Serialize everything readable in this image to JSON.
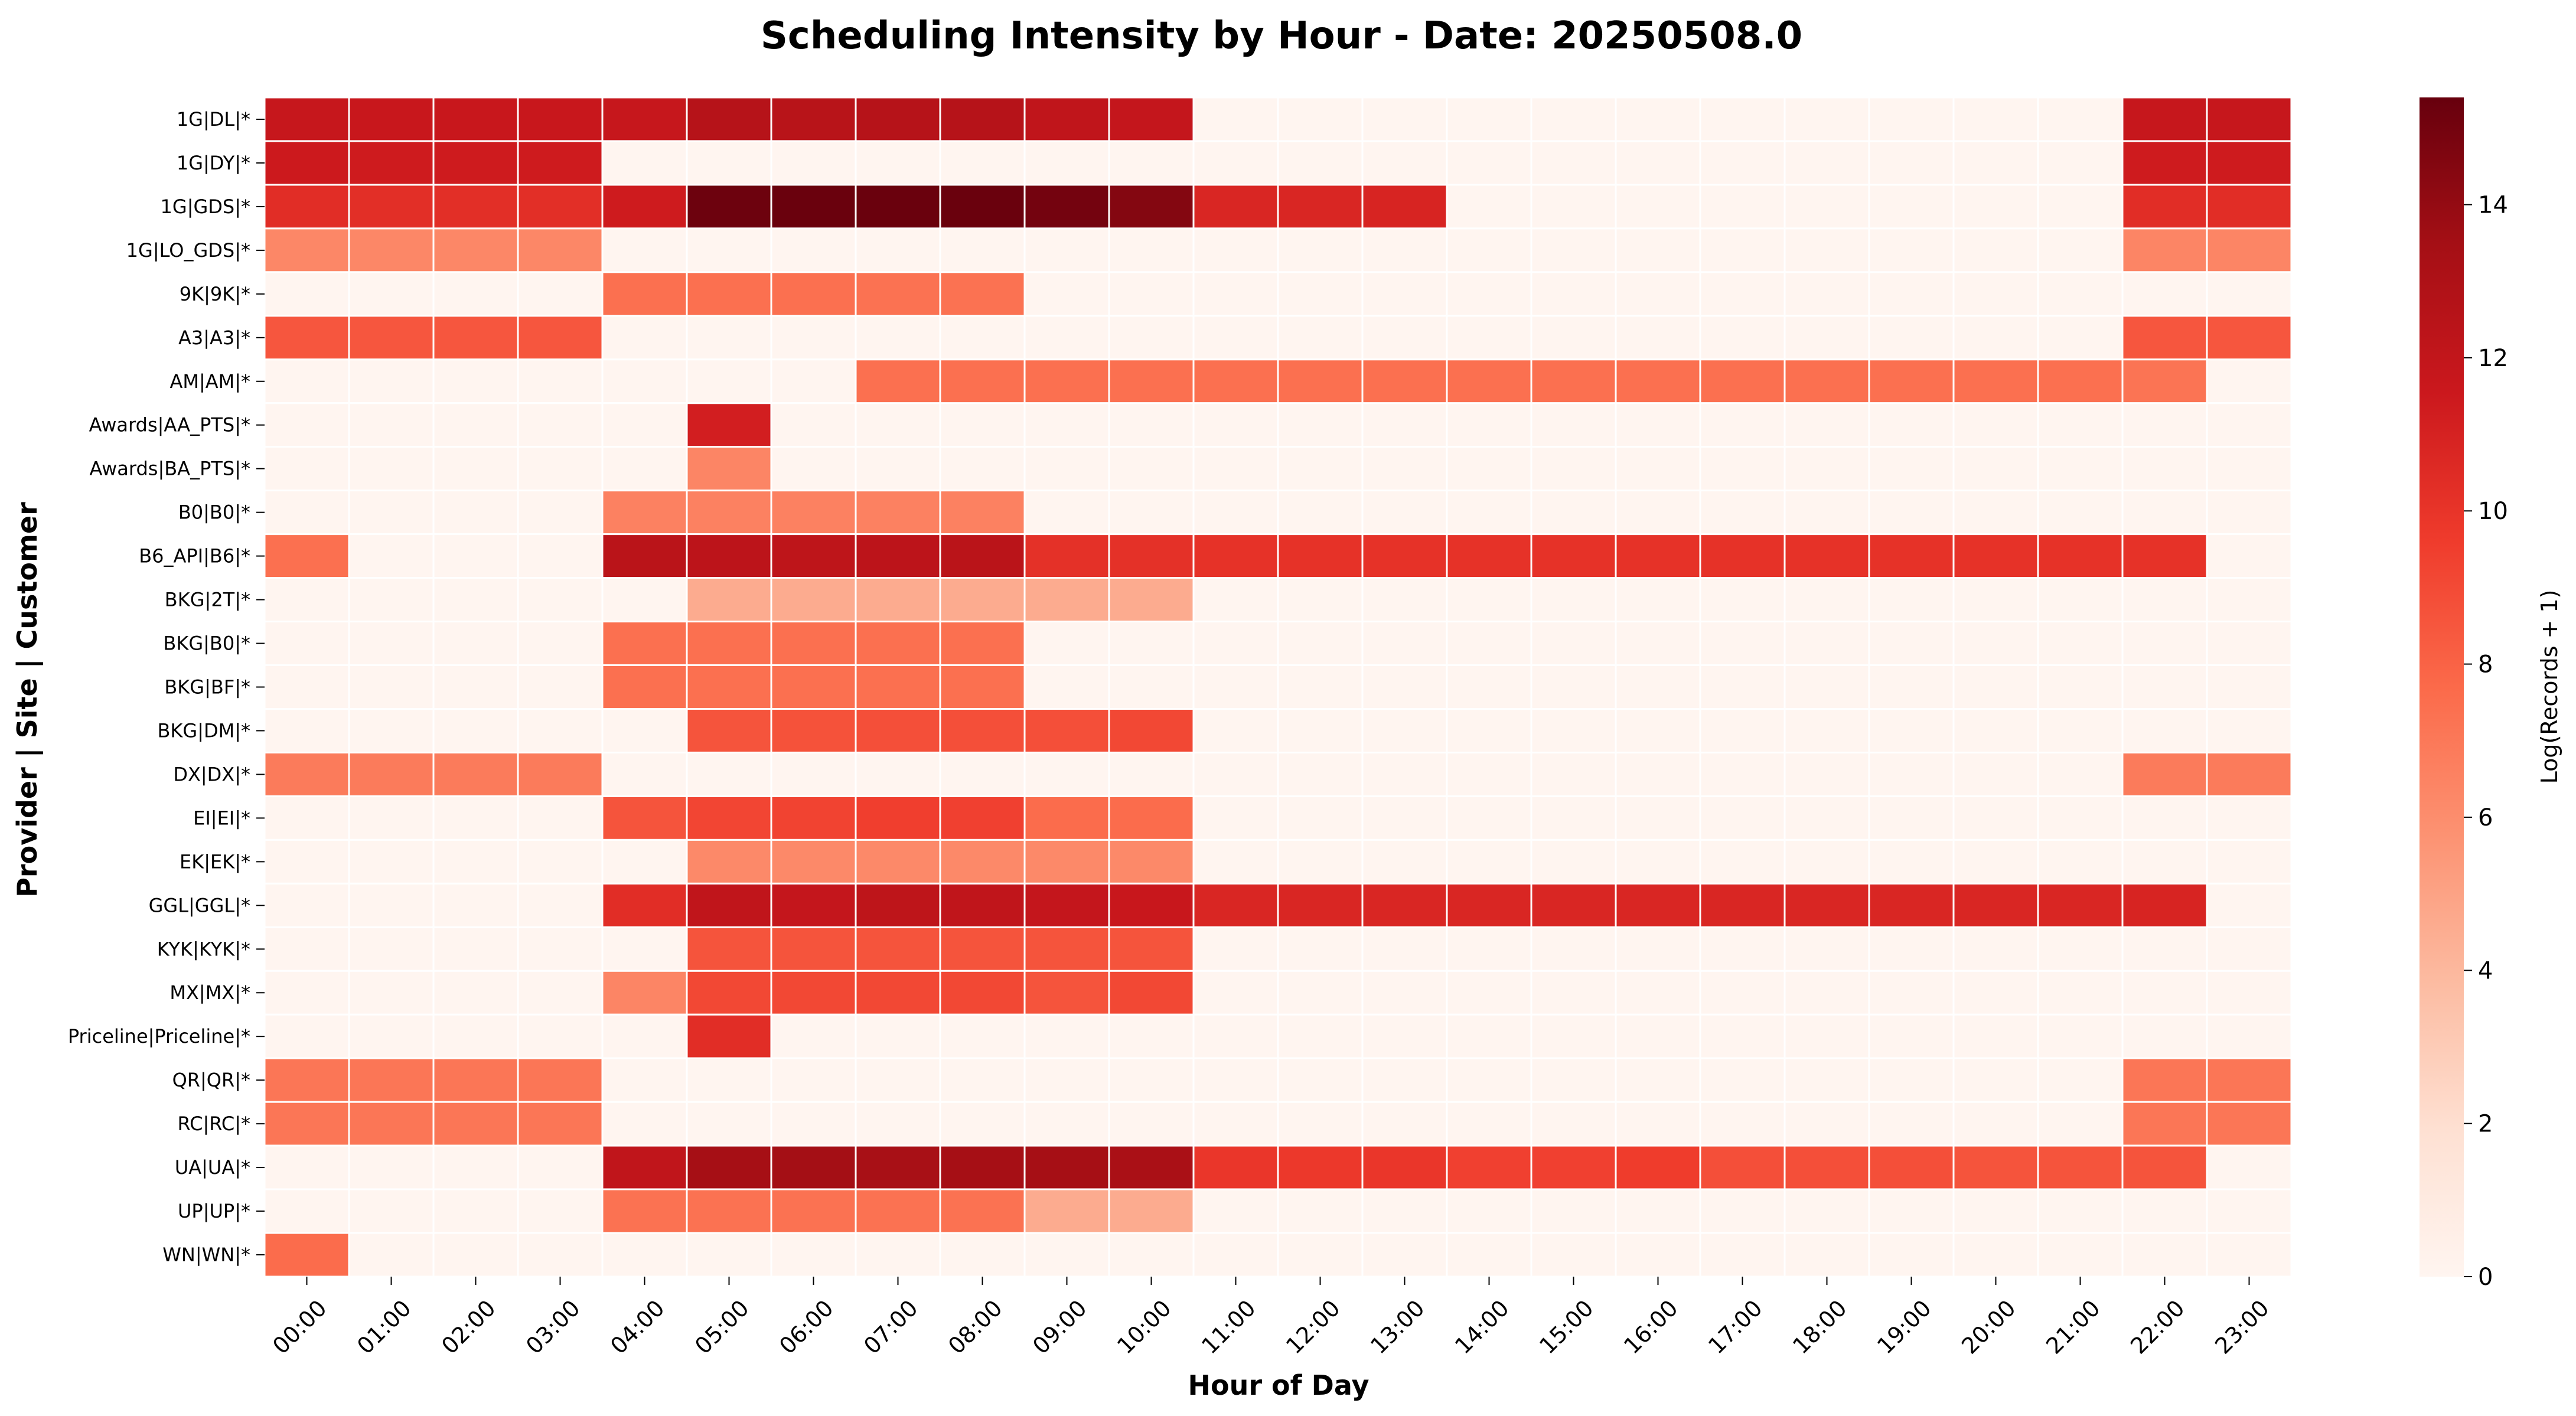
{
  "chart_data": {
    "type": "heatmap",
    "title": "Scheduling Intensity by Hour - Date: 20250508.0",
    "xlabel": "Hour of Day",
    "ylabel": "Provider | Site | Customer",
    "colorbar_label": "Log(Records + 1)",
    "colorbar_range": [
      0,
      15.4
    ],
    "colorbar_ticks": [
      0,
      2,
      4,
      6,
      8,
      10,
      12,
      14
    ],
    "colormap": "Reds",
    "x": [
      "00:00",
      "01:00",
      "02:00",
      "03:00",
      "04:00",
      "05:00",
      "06:00",
      "07:00",
      "08:00",
      "09:00",
      "10:00",
      "11:00",
      "12:00",
      "13:00",
      "14:00",
      "15:00",
      "16:00",
      "17:00",
      "18:00",
      "19:00",
      "20:00",
      "21:00",
      "22:00",
      "23:00"
    ],
    "y": [
      "1G|DL|*",
      "1G|DY|*",
      "1G|GDS|*",
      "1G|LO_GDS|*",
      "9K|9K|*",
      "A3|A3|*",
      "AM|AM|*",
      "Awards|AA_PTS|*",
      "Awards|BA_PTS|*",
      "B0|B0|*",
      "B6_API|B6|*",
      "BKG|2T|*",
      "BKG|B0|*",
      "BKG|BF|*",
      "BKG|DM|*",
      "DX|DX|*",
      "EI|EI|*",
      "EK|EK|*",
      "GGL|GGL|*",
      "KYK|KYK|*",
      "MX|MX|*",
      "Priceline|Priceline|*",
      "QR|QR|*",
      "RC|RC|*",
      "UA|UA|*",
      "UP|UP|*",
      "WN|WN|*"
    ],
    "values": [
      [
        11.8,
        11.7,
        11.7,
        11.7,
        11.8,
        12.6,
        12.5,
        12.6,
        12.6,
        12.1,
        11.9,
        0,
        0,
        0,
        0,
        0,
        0,
        0,
        0,
        0,
        0,
        0,
        11.8,
        11.8
      ],
      [
        11.5,
        11.4,
        11.4,
        11.4,
        0,
        0,
        0,
        0,
        0,
        0,
        0,
        0,
        0,
        0,
        0,
        0,
        0,
        0,
        0,
        0,
        0,
        0,
        11.4,
        11.4
      ],
      [
        10.4,
        10.3,
        10.3,
        10.3,
        11.4,
        15.2,
        15.3,
        15.3,
        15.3,
        15.0,
        14.5,
        10.8,
        10.8,
        10.9,
        0,
        0,
        0,
        0,
        0,
        0,
        0,
        0,
        10.4,
        10.4
      ],
      [
        6.3,
        6.3,
        6.3,
        6.3,
        0,
        0,
        0,
        0,
        0,
        0,
        0,
        0,
        0,
        0,
        0,
        0,
        0,
        0,
        0,
        0,
        0,
        0,
        6.4,
        6.4
      ],
      [
        0,
        0,
        0,
        0,
        7.4,
        7.4,
        7.4,
        7.3,
        7.3,
        0,
        0,
        0,
        0,
        0,
        0,
        0,
        0,
        0,
        0,
        0,
        0,
        0,
        0,
        0
      ],
      [
        8.5,
        8.5,
        8.5,
        8.5,
        0,
        0,
        0,
        0,
        0,
        0,
        0,
        0,
        0,
        0,
        0,
        0,
        0,
        0,
        0,
        0,
        0,
        0,
        8.5,
        8.5
      ],
      [
        0,
        0,
        0,
        0,
        0,
        0,
        0,
        7.4,
        7.4,
        7.4,
        7.4,
        7.4,
        7.4,
        7.4,
        7.4,
        7.4,
        7.4,
        7.4,
        7.4,
        7.4,
        7.4,
        7.4,
        7.2,
        0
      ],
      [
        0,
        0,
        0,
        0,
        0,
        11.2,
        0,
        0,
        0,
        0,
        0,
        0,
        0,
        0,
        0,
        0,
        0,
        0,
        0,
        0,
        0,
        0,
        0,
        0
      ],
      [
        0,
        0,
        0,
        0,
        0,
        6.4,
        0,
        0,
        0,
        0,
        0,
        0,
        0,
        0,
        0,
        0,
        0,
        0,
        0,
        0,
        0,
        0,
        0,
        0
      ],
      [
        0,
        0,
        0,
        0,
        6.6,
        6.6,
        6.6,
        6.6,
        6.6,
        0,
        0,
        0,
        0,
        0,
        0,
        0,
        0,
        0,
        0,
        0,
        0,
        0,
        0,
        0
      ],
      [
        7.4,
        0,
        0,
        0,
        12.4,
        12.3,
        12.2,
        12.3,
        12.4,
        10.2,
        10.2,
        10.1,
        10.1,
        10.1,
        10.1,
        10.1,
        10.1,
        10.1,
        10.1,
        10.1,
        10.1,
        10.1,
        10.1,
        0
      ],
      [
        0,
        0,
        0,
        0,
        0,
        4.6,
        4.6,
        4.6,
        4.6,
        4.6,
        4.6,
        0,
        0,
        0,
        0,
        0,
        0,
        0,
        0,
        0,
        0,
        0,
        0,
        0
      ],
      [
        0,
        0,
        0,
        0,
        7.4,
        7.4,
        7.4,
        7.4,
        7.4,
        0,
        0,
        0,
        0,
        0,
        0,
        0,
        0,
        0,
        0,
        0,
        0,
        0,
        0,
        0
      ],
      [
        0,
        0,
        0,
        0,
        7.4,
        7.4,
        7.4,
        7.4,
        7.4,
        0,
        0,
        0,
        0,
        0,
        0,
        0,
        0,
        0,
        0,
        0,
        0,
        0,
        0,
        0
      ],
      [
        0,
        0,
        0,
        0,
        0,
        8.6,
        8.7,
        8.8,
        8.8,
        8.8,
        9.1,
        0,
        0,
        0,
        0,
        0,
        0,
        0,
        0,
        0,
        0,
        0,
        0,
        0
      ],
      [
        6.9,
        6.9,
        6.9,
        6.9,
        0,
        0,
        0,
        0,
        0,
        0,
        0,
        0,
        0,
        0,
        0,
        0,
        0,
        0,
        0,
        0,
        0,
        0,
        6.9,
        6.9
      ],
      [
        0,
        0,
        0,
        0,
        8.6,
        9.2,
        9.3,
        9.5,
        9.4,
        7.6,
        7.6,
        0,
        0,
        0,
        0,
        0,
        0,
        0,
        0,
        0,
        0,
        0,
        0,
        0
      ],
      [
        0,
        0,
        0,
        0,
        0,
        6.2,
        6.2,
        6.2,
        6.2,
        6.2,
        6.2,
        0,
        0,
        0,
        0,
        0,
        0,
        0,
        0,
        0,
        0,
        0,
        0,
        0
      ],
      [
        0,
        0,
        0,
        0,
        10.4,
        12.1,
        11.9,
        12.2,
        12.1,
        11.9,
        11.7,
        10.8,
        10.8,
        10.8,
        10.8,
        10.8,
        10.8,
        10.8,
        10.8,
        10.8,
        10.8,
        10.8,
        10.9,
        0
      ],
      [
        0,
        0,
        0,
        0,
        0,
        8.6,
        8.6,
        8.6,
        8.6,
        8.6,
        8.6,
        0,
        0,
        0,
        0,
        0,
        0,
        0,
        0,
        0,
        0,
        0,
        0,
        0
      ],
      [
        0,
        0,
        0,
        0,
        6.4,
        9.1,
        9.1,
        9.1,
        9.1,
        8.6,
        9.1,
        0,
        0,
        0,
        0,
        0,
        0,
        0,
        0,
        0,
        0,
        0,
        0,
        0
      ],
      [
        0,
        0,
        0,
        0,
        0,
        10.4,
        0,
        0,
        0,
        0,
        0,
        0,
        0,
        0,
        0,
        0,
        0,
        0,
        0,
        0,
        0,
        0,
        0,
        0
      ],
      [
        7.1,
        7.1,
        7.1,
        7.1,
        0,
        0,
        0,
        0,
        0,
        0,
        0,
        0,
        0,
        0,
        0,
        0,
        0,
        0,
        0,
        0,
        0,
        0,
        7.1,
        7.1
      ],
      [
        7.1,
        7.1,
        7.1,
        7.1,
        0,
        0,
        0,
        0,
        0,
        0,
        0,
        0,
        0,
        0,
        0,
        0,
        0,
        0,
        0,
        0,
        0,
        0,
        7.1,
        7.1
      ],
      [
        0,
        0,
        0,
        0,
        12.1,
        13.4,
        13.5,
        13.3,
        13.4,
        13.4,
        13.2,
        9.9,
        9.8,
        9.9,
        9.4,
        9.4,
        9.6,
        8.8,
        8.8,
        8.8,
        8.6,
        8.6,
        8.6,
        0
      ],
      [
        0,
        0,
        0,
        0,
        7.3,
        7.3,
        7.3,
        7.3,
        7.3,
        4.6,
        4.6,
        0,
        0,
        0,
        0,
        0,
        0,
        0,
        0,
        0,
        0,
        0,
        0,
        0
      ],
      [
        7.6,
        0,
        0,
        0,
        0,
        0,
        0,
        0,
        0,
        0,
        0,
        0,
        0,
        0,
        0,
        0,
        0,
        0,
        0,
        0,
        0,
        0,
        0,
        0
      ]
    ]
  }
}
